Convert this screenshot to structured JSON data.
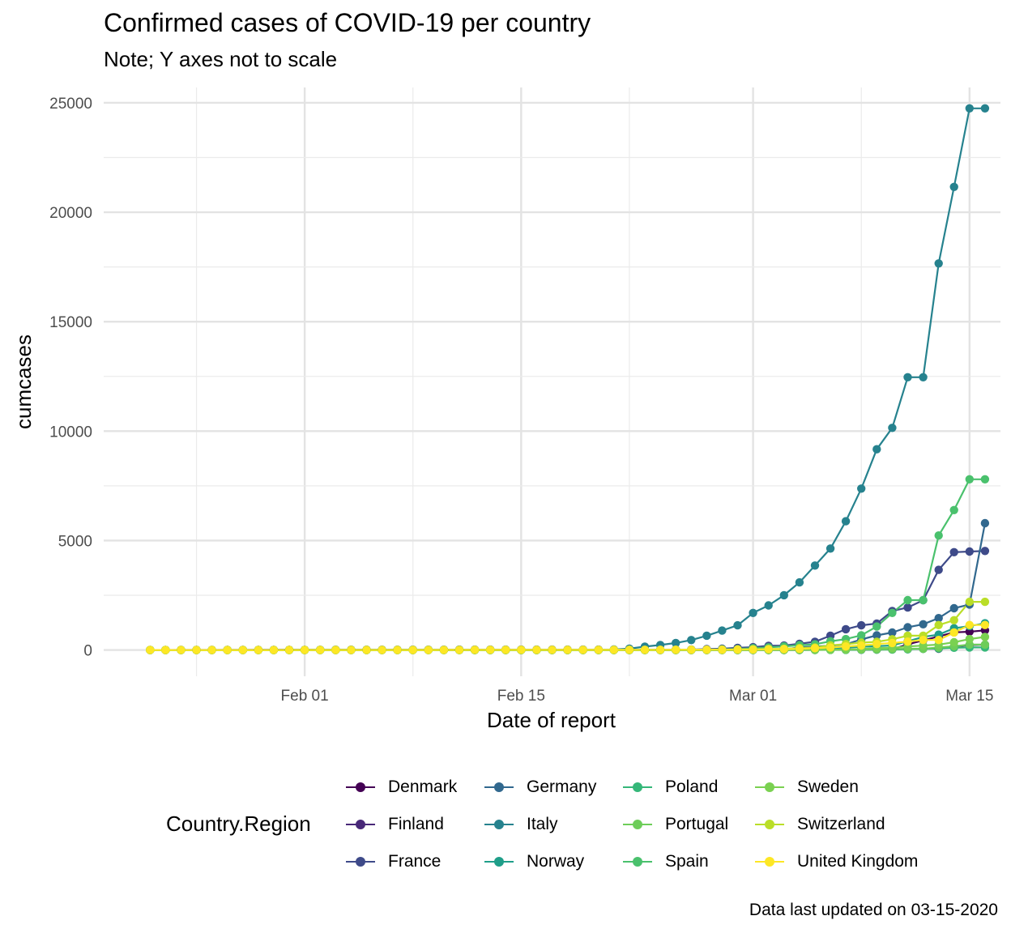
{
  "header": {
    "title": "Confirmed cases of COVID-19 per country",
    "subtitle": "Note; Y axes not to scale",
    "caption": "Data last updated on 03-15-2020"
  },
  "legend": {
    "title": "Country.Region"
  },
  "chart_data": {
    "type": "line",
    "title": "Confirmed cases of COVID-19 per country",
    "subtitle": "Note; Y axes not to scale",
    "xlabel": "Date of report",
    "ylabel": "cumcases",
    "x_range": [
      "2020-01-22",
      "2020-03-15"
    ],
    "xlim": [
      "2020-01-19",
      "2020-03-17"
    ],
    "ylim": [
      -1200,
      25700
    ],
    "x_ticks": [
      "Feb 01",
      "Feb 15",
      "Mar 01",
      "Mar 15"
    ],
    "x_tick_dates": [
      "2020-02-01",
      "2020-02-15",
      "2020-03-01",
      "2020-03-15"
    ],
    "y_ticks": [
      0,
      5000,
      10000,
      15000,
      20000,
      25000
    ],
    "grid": true,
    "legend_position": "bottom",
    "marker": "circle",
    "series": [
      {
        "name": "Denmark",
        "color": "#440154",
        "start": "2020-01-22",
        "values": [
          0,
          0,
          0,
          0,
          0,
          0,
          0,
          0,
          0,
          0,
          0,
          0,
          0,
          0,
          0,
          0,
          0,
          0,
          0,
          0,
          0,
          0,
          0,
          0,
          0,
          0,
          0,
          0,
          0,
          0,
          0,
          0,
          0,
          0,
          0,
          0,
          1,
          1,
          1,
          2,
          3,
          4,
          4,
          6,
          10,
          10,
          15,
          20,
          30,
          260,
          440,
          620,
          804,
          836,
          898
        ]
      },
      {
        "name": "Finland",
        "color": "#482878",
        "start": "2020-01-22",
        "values": [
          0,
          0,
          0,
          0,
          0,
          0,
          0,
          0,
          0,
          1,
          1,
          1,
          1,
          1,
          1,
          1,
          1,
          1,
          1,
          1,
          1,
          1,
          1,
          1,
          1,
          1,
          1,
          1,
          1,
          1,
          1,
          1,
          1,
          1,
          1,
          1,
          2,
          2,
          3,
          6,
          7,
          7,
          12,
          15,
          15,
          19,
          23,
          30,
          30,
          40,
          59,
          59,
          155,
          225,
          244
        ]
      },
      {
        "name": "France",
        "color": "#3E4A89",
        "start": "2020-01-22",
        "values": [
          0,
          0,
          2,
          3,
          3,
          3,
          4,
          5,
          5,
          5,
          6,
          6,
          6,
          6,
          6,
          6,
          6,
          11,
          11,
          11,
          11,
          11,
          11,
          11,
          12,
          12,
          12,
          12,
          12,
          12,
          12,
          12,
          12,
          12,
          14,
          18,
          38,
          57,
          100,
          130,
          191,
          204,
          285,
          377,
          653,
          949,
          1126,
          1209,
          1784,
          1940,
          2276,
          3661,
          4469,
          4499,
          4523
        ]
      },
      {
        "name": "Germany",
        "color": "#31688E",
        "start": "2020-01-22",
        "values": [
          0,
          0,
          0,
          0,
          0,
          1,
          4,
          4,
          4,
          5,
          8,
          10,
          12,
          12,
          12,
          12,
          13,
          13,
          14,
          14,
          16,
          16,
          16,
          16,
          16,
          16,
          16,
          16,
          16,
          16,
          16,
          16,
          16,
          16,
          16,
          16,
          16,
          16,
          16,
          16,
          16,
          16,
          130,
          159,
          196,
          262,
          482,
          670,
          799,
          1040,
          1176,
          1457,
          1908,
          2078,
          5795
        ]
      },
      {
        "name": "Italy",
        "color": "#26828E",
        "start": "2020-01-22",
        "values": [
          0,
          0,
          0,
          0,
          0,
          0,
          0,
          0,
          0,
          2,
          2,
          2,
          2,
          2,
          3,
          3,
          3,
          3,
          3,
          3,
          3,
          3,
          3,
          3,
          3,
          3,
          3,
          3,
          3,
          3,
          20,
          62,
          155,
          229,
          322,
          453,
          655,
          888,
          1128,
          1694,
          2036,
          2502,
          3089,
          3858,
          4636,
          5883,
          7375,
          9172,
          10149,
          12462,
          12462,
          17660,
          21157,
          24747,
          24747
        ]
      },
      {
        "name": "Norway",
        "color": "#1F9E89",
        "start": "2020-01-22",
        "values": [
          0,
          0,
          0,
          0,
          0,
          0,
          0,
          0,
          0,
          0,
          0,
          0,
          0,
          0,
          0,
          0,
          0,
          0,
          0,
          0,
          0,
          0,
          0,
          0,
          0,
          0,
          0,
          0,
          0,
          0,
          0,
          0,
          0,
          0,
          0,
          0,
          1,
          1,
          6,
          15,
          19,
          25,
          32,
          56,
          87,
          108,
          147,
          176,
          205,
          400,
          598,
          702,
          996,
          1090,
          1221
        ]
      },
      {
        "name": "Poland",
        "color": "#35B779",
        "start": "2020-01-22",
        "values": [
          0,
          0,
          0,
          0,
          0,
          0,
          0,
          0,
          0,
          0,
          0,
          0,
          0,
          0,
          0,
          0,
          0,
          0,
          0,
          0,
          0,
          0,
          0,
          0,
          0,
          0,
          0,
          0,
          0,
          0,
          0,
          0,
          0,
          0,
          0,
          0,
          0,
          0,
          0,
          0,
          0,
          0,
          1,
          1,
          5,
          5,
          11,
          16,
          22,
          31,
          49,
          68,
          103,
          119,
          119
        ]
      },
      {
        "name": "Portugal",
        "color": "#6DCD59",
        "start": "2020-01-22",
        "values": [
          0,
          0,
          0,
          0,
          0,
          0,
          0,
          0,
          0,
          0,
          0,
          0,
          0,
          0,
          0,
          0,
          0,
          0,
          0,
          0,
          0,
          0,
          0,
          0,
          0,
          0,
          0,
          0,
          0,
          0,
          0,
          0,
          0,
          0,
          0,
          0,
          0,
          0,
          0,
          0,
          2,
          2,
          5,
          8,
          13,
          20,
          30,
          30,
          41,
          59,
          59,
          112,
          169,
          245,
          245
        ]
      },
      {
        "name": "Spain",
        "color": "#4AC16D",
        "start": "2020-01-22",
        "values": [
          0,
          0,
          0,
          0,
          0,
          0,
          0,
          0,
          0,
          0,
          1,
          1,
          1,
          1,
          1,
          1,
          1,
          1,
          1,
          2,
          2,
          2,
          2,
          2,
          2,
          2,
          2,
          2,
          2,
          2,
          2,
          2,
          2,
          2,
          6,
          13,
          15,
          32,
          45,
          84,
          120,
          165,
          222,
          259,
          400,
          500,
          673,
          1073,
          1695,
          2277,
          2277,
          5232,
          6391,
          7798,
          7798
        ]
      },
      {
        "name": "Sweden",
        "color": "#7AD151",
        "start": "2020-01-22",
        "values": [
          0,
          0,
          0,
          0,
          0,
          0,
          0,
          0,
          0,
          0,
          1,
          1,
          1,
          1,
          1,
          1,
          1,
          1,
          1,
          1,
          1,
          1,
          1,
          1,
          1,
          1,
          1,
          1,
          1,
          1,
          1,
          1,
          1,
          1,
          1,
          1,
          1,
          1,
          2,
          2,
          7,
          7,
          12,
          14,
          15,
          21,
          35,
          94,
          101,
          161,
          203,
          248,
          355,
          500,
          599
        ]
      },
      {
        "name": "Switzerland",
        "color": "#BADE28",
        "start": "2020-01-22",
        "values": [
          0,
          0,
          0,
          0,
          0,
          0,
          0,
          0,
          0,
          0,
          0,
          0,
          0,
          0,
          0,
          0,
          0,
          0,
          0,
          0,
          0,
          0,
          0,
          0,
          0,
          0,
          0,
          0,
          0,
          0,
          0,
          0,
          0,
          0,
          1,
          1,
          8,
          8,
          18,
          27,
          42,
          56,
          90,
          114,
          214,
          268,
          337,
          374,
          491,
          652,
          652,
          1139,
          1359,
          2200,
          2200
        ]
      },
      {
        "name": "United Kingdom",
        "color": "#FDE725",
        "start": "2020-01-22",
        "values": [
          0,
          0,
          0,
          0,
          0,
          0,
          0,
          0,
          0,
          2,
          2,
          2,
          2,
          2,
          2,
          2,
          2,
          3,
          3,
          8,
          8,
          9,
          9,
          9,
          9,
          9,
          9,
          9,
          9,
          9,
          9,
          9,
          9,
          9,
          13,
          13,
          13,
          15,
          20,
          23,
          36,
          40,
          51,
          85,
          115,
          163,
          206,
          273,
          321,
          382,
          456,
          459,
          802,
          1144,
          1144
        ]
      }
    ]
  }
}
